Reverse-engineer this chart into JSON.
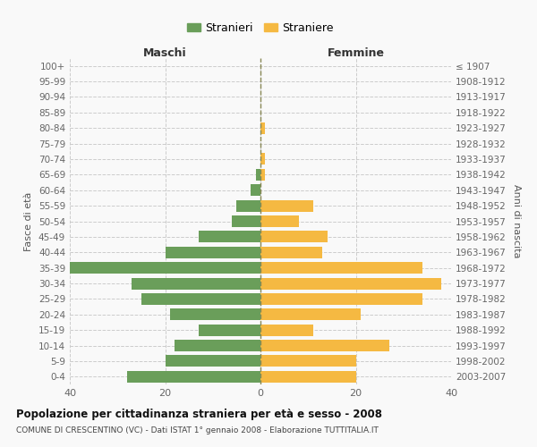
{
  "age_groups": [
    "0-4",
    "5-9",
    "10-14",
    "15-19",
    "20-24",
    "25-29",
    "30-34",
    "35-39",
    "40-44",
    "45-49",
    "50-54",
    "55-59",
    "60-64",
    "65-69",
    "70-74",
    "75-79",
    "80-84",
    "85-89",
    "90-94",
    "95-99",
    "100+"
  ],
  "birth_years": [
    "2003-2007",
    "1998-2002",
    "1993-1997",
    "1988-1992",
    "1983-1987",
    "1978-1982",
    "1973-1977",
    "1968-1972",
    "1963-1967",
    "1958-1962",
    "1953-1957",
    "1948-1952",
    "1943-1947",
    "1938-1942",
    "1933-1937",
    "1928-1932",
    "1923-1927",
    "1918-1922",
    "1913-1917",
    "1908-1912",
    "≤ 1907"
  ],
  "males": [
    28,
    20,
    18,
    13,
    19,
    25,
    27,
    40,
    20,
    13,
    6,
    5,
    2,
    1,
    0,
    0,
    0,
    0,
    0,
    0,
    0
  ],
  "females": [
    20,
    20,
    27,
    11,
    21,
    34,
    38,
    34,
    13,
    14,
    8,
    11,
    0,
    1,
    1,
    0,
    1,
    0,
    0,
    0,
    0
  ],
  "male_color": "#6a9e5a",
  "female_color": "#f5b942",
  "center_line_color": "#888855",
  "grid_color": "#cccccc",
  "bg_color": "#f9f9f9",
  "title": "Popolazione per cittadinanza straniera per età e sesso - 2008",
  "subtitle": "COMUNE DI CRESCENTINO (VC) - Dati ISTAT 1° gennaio 2008 - Elaborazione TUTTITALIA.IT",
  "legend_stranieri": "Stranieri",
  "legend_straniere": "Straniere",
  "xlabel_left": "Maschi",
  "xlabel_right": "Femmine",
  "ylabel_left": "Fasce di età",
  "ylabel_right": "Anni di nascita",
  "xlim": 40
}
